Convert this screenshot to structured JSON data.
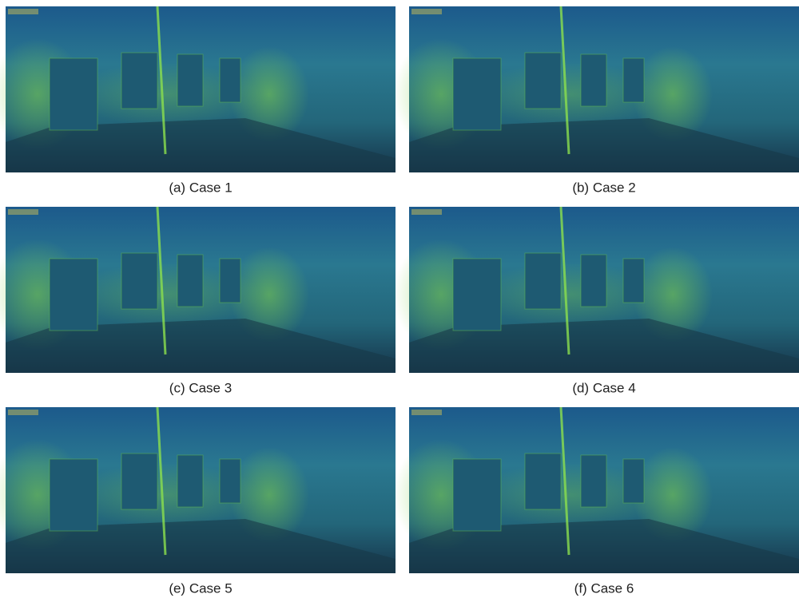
{
  "panels": [
    {
      "caption": "(a) Case 1"
    },
    {
      "caption": "(b) Case 2"
    },
    {
      "caption": "(c) Case 3"
    },
    {
      "caption": "(d) Case 4"
    },
    {
      "caption": "(e) Case 5"
    },
    {
      "caption": "(f) Case 6"
    }
  ]
}
